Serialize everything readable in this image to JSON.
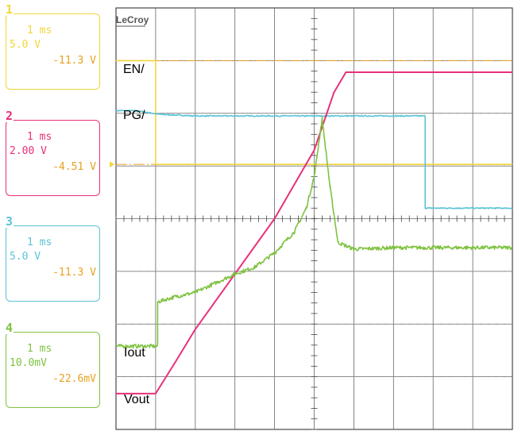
{
  "brand": "LeCroy",
  "channels": [
    {
      "number": "1",
      "timebase": "1 ms",
      "vdiv": "5.0 V",
      "offset": "-11.3 V",
      "color": "#f2d63a"
    },
    {
      "number": "2",
      "timebase": "1 ms",
      "vdiv": "2.00 V",
      "offset": "-4.51 V",
      "color": "#e8307a"
    },
    {
      "number": "3",
      "timebase": "1 ms",
      "vdiv": "5.0 V",
      "offset": "-11.3 V",
      "color": "#5bc4d6"
    },
    {
      "number": "4",
      "timebase": "1 ms",
      "vdiv": "10.0mV",
      "offset": "-22.6mV",
      "color": "#7fc241"
    }
  ],
  "offset_color": "#e8a020",
  "chart_data": {
    "type": "line",
    "xlabel": "",
    "ylabel": "",
    "grid": true,
    "xlim": [
      0,
      10
    ],
    "ylim": [
      0,
      8
    ],
    "x_units": "ms (1 ms/div)",
    "y_units": "divisions",
    "series": [
      {
        "name": "EN/",
        "color": "#f2d63a",
        "channel": "1",
        "x": [
          0,
          1.0,
          1.0,
          10
        ],
        "y": [
          7.0,
          7.0,
          5.03,
          5.03
        ]
      },
      {
        "name": "PG/",
        "color": "#5bc4d6",
        "channel": "3",
        "x": [
          0,
          0.5,
          1.1,
          2.0,
          5.0,
          7.8,
          7.8,
          10
        ],
        "y": [
          6.05,
          6.05,
          5.98,
          5.95,
          5.95,
          5.95,
          4.2,
          4.2
        ]
      },
      {
        "name": "Vout",
        "color": "#e8307a",
        "channel": "2",
        "x": [
          0,
          1.0,
          1.5,
          2.0,
          3.0,
          4.0,
          5.0,
          5.5,
          5.8,
          10
        ],
        "y": [
          0.68,
          0.68,
          1.28,
          1.9,
          2.95,
          4.0,
          5.3,
          6.4,
          6.78,
          6.78
        ]
      },
      {
        "name": "Iout",
        "color": "#7fc241",
        "channel": "4",
        "x": [
          0,
          1.05,
          1.05,
          1.5,
          2.0,
          3.0,
          3.5,
          4.0,
          4.5,
          4.8,
          5.0,
          5.2,
          5.4,
          5.6,
          6.0,
          7.0,
          8.0,
          10
        ],
        "y": [
          1.58,
          1.58,
          2.42,
          2.52,
          2.6,
          2.95,
          3.08,
          3.35,
          3.75,
          4.2,
          4.8,
          5.9,
          4.6,
          3.55,
          3.42,
          3.45,
          3.45,
          3.45
        ]
      }
    ],
    "trace_labels": [
      {
        "text": "EN/",
        "series": "EN/"
      },
      {
        "text": "PG/",
        "series": "PG/"
      },
      {
        "text": "Iout",
        "series": "Iout"
      },
      {
        "text": "Vout",
        "series": "Vout"
      }
    ]
  }
}
